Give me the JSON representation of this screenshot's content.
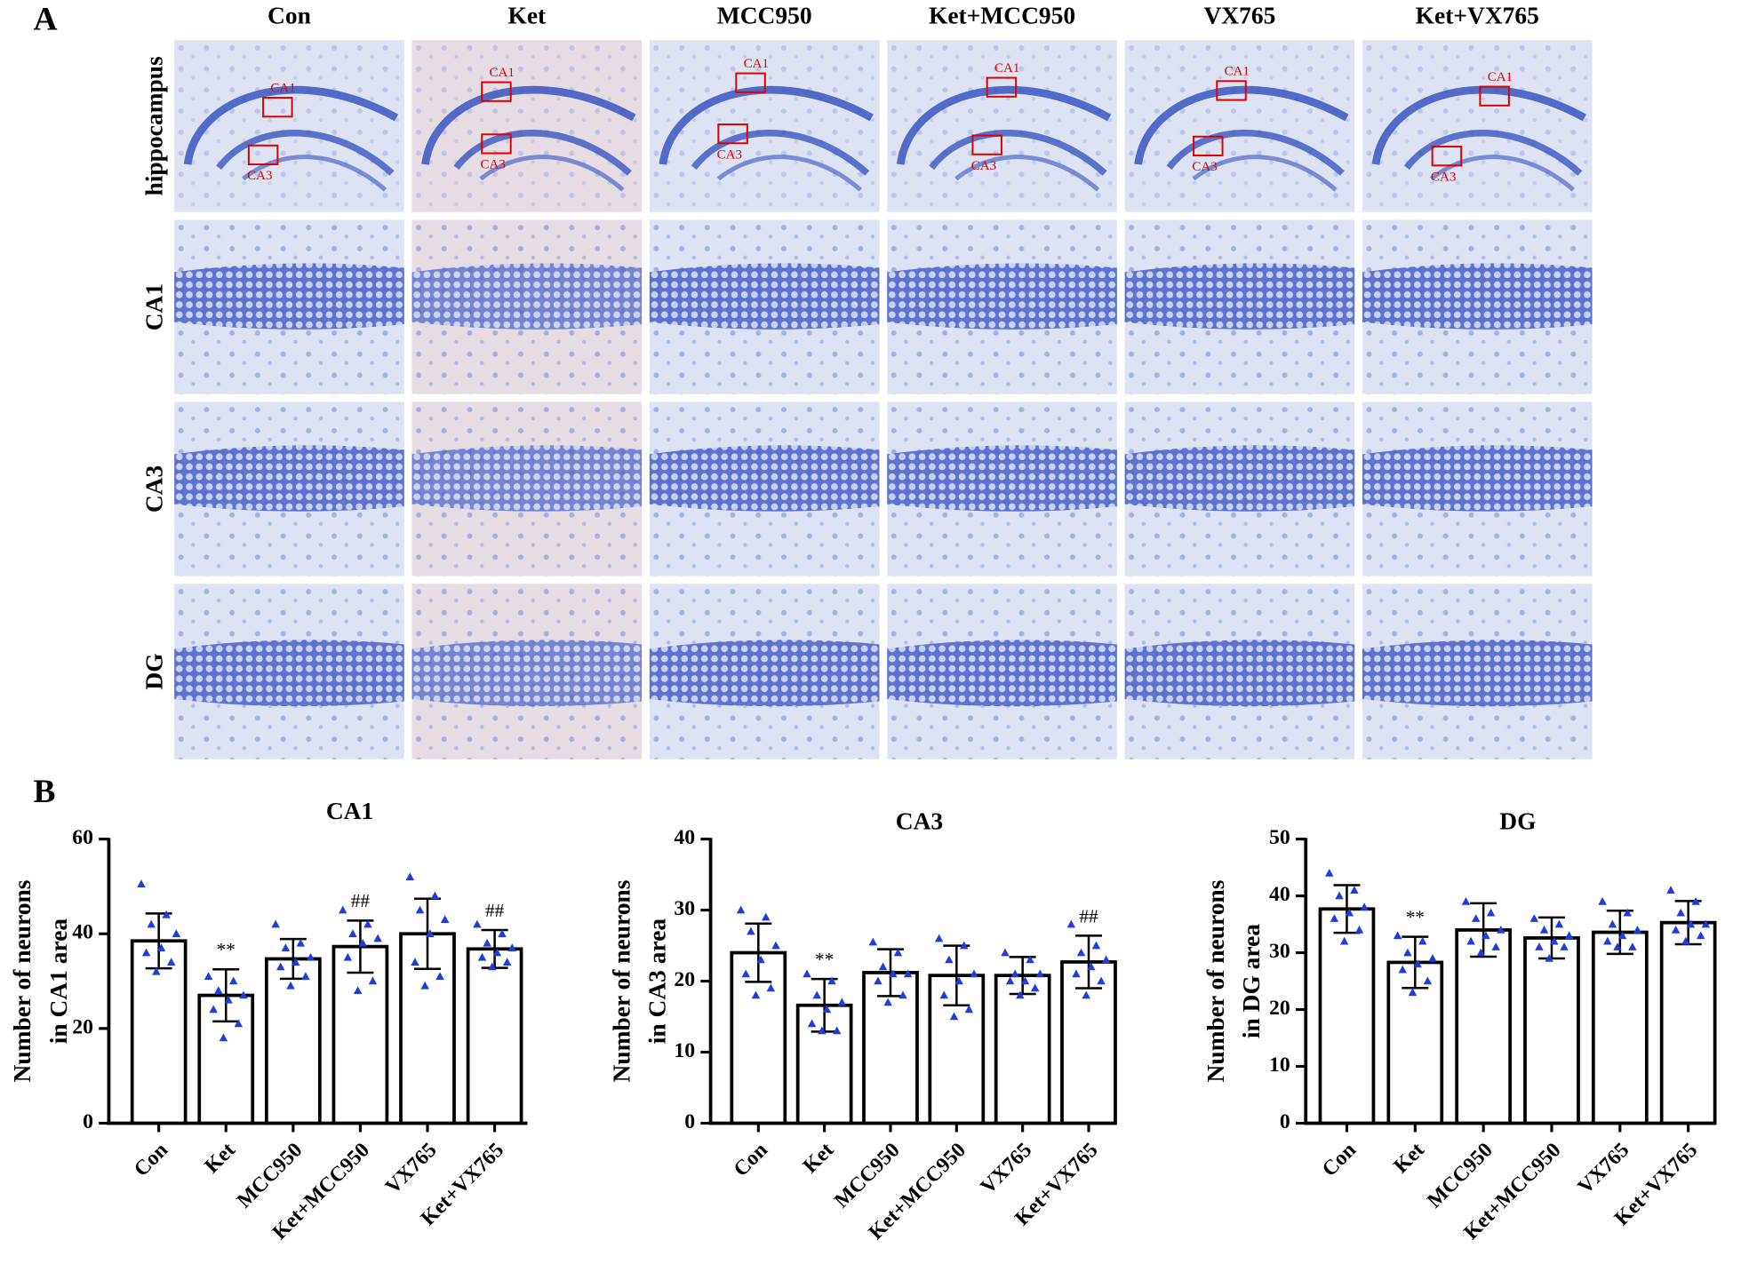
{
  "panel_labels": [
    "A",
    "B"
  ],
  "micrographs": {
    "columns": [
      "Con",
      "Ket",
      "MCC950",
      "Ket+MCC950",
      "VX765",
      "Ket+VX765"
    ],
    "rows": [
      "hippocampus",
      "CA1",
      "CA3",
      "DG"
    ],
    "region_labels": [
      "CA1",
      "CA3"
    ]
  },
  "chart_data": [
    {
      "type": "bar",
      "title": "CA1",
      "y_label": [
        "Number of neurons",
        "in CA1 area"
      ],
      "categories": [
        "Con",
        "Ket",
        "MCC950",
        "Ket+MCC950",
        "VX765",
        "Ket+VX765"
      ],
      "values": [
        38.5,
        27,
        34.7,
        37.3,
        40,
        36.8
      ],
      "errors": [
        5.8,
        5.5,
        4.2,
        5.5,
        7.4,
        4
      ],
      "annotations": [
        null,
        "**",
        null,
        "##",
        null,
        "##"
      ],
      "points": [
        [
          50.5,
          44,
          42,
          40,
          37,
          36,
          34,
          32
        ],
        [
          31,
          30,
          28,
          27,
          26,
          24,
          21,
          18
        ],
        [
          42,
          38,
          37,
          35,
          34,
          33,
          31,
          29
        ],
        [
          45,
          42,
          40,
          39,
          38,
          35,
          30,
          28
        ],
        [
          52,
          48,
          45,
          43,
          40,
          34,
          31,
          29
        ],
        [
          42,
          40,
          38,
          37,
          36,
          35,
          34,
          33
        ]
      ],
      "color": "#000000",
      "point_color": "#1d3ed8",
      "ylim": [
        0,
        60
      ],
      "yticks": [
        0,
        20,
        40,
        60
      ]
    },
    {
      "type": "bar",
      "title": "CA3",
      "y_label": [
        "Number of neurons",
        "in CA3 area"
      ],
      "categories": [
        "Con",
        "Ket",
        "MCC950",
        "Ket+MCC950",
        "VX765",
        "Ket+VX765"
      ],
      "values": [
        24,
        16.6,
        21.2,
        20.8,
        20.8,
        22.7
      ],
      "errors": [
        4.1,
        3.7,
        3.3,
        4.2,
        2.6,
        3.7
      ],
      "annotations": [
        null,
        "**",
        null,
        null,
        null,
        "##"
      ],
      "points": [
        [
          30,
          29,
          27,
          25,
          23,
          21,
          19,
          18
        ],
        [
          21,
          20,
          18,
          17,
          16,
          14,
          13,
          13
        ],
        [
          25.5,
          24,
          22,
          21,
          21,
          20,
          18,
          17
        ],
        [
          26,
          25,
          23,
          21,
          20,
          18,
          16,
          15
        ],
        [
          24,
          23,
          21,
          21,
          20,
          20,
          19,
          18
        ],
        [
          28,
          25,
          24,
          23,
          22,
          21,
          20,
          18
        ]
      ],
      "color": "#000000",
      "point_color": "#1d3ed8",
      "ylim": [
        0,
        40
      ],
      "yticks": [
        0,
        10,
        20,
        30,
        40
      ]
    },
    {
      "type": "bar",
      "title": "DG",
      "y_label": [
        "Number of neurons",
        "in DG area"
      ],
      "categories": [
        "Con",
        "Ket",
        "MCC950",
        "Ket+MCC950",
        "VX765",
        "Ket+VX765"
      ],
      "values": [
        37.7,
        28.3,
        34,
        32.6,
        33.6,
        35.3
      ],
      "errors": [
        4.2,
        4.5,
        4.7,
        3.6,
        3.8,
        3.8
      ],
      "annotations": [
        null,
        "**",
        null,
        null,
        null,
        null
      ],
      "points": [
        [
          44,
          41,
          40,
          38,
          37,
          36,
          34,
          32
        ],
        [
          33,
          32,
          30,
          29,
          28,
          27,
          25,
          23
        ],
        [
          39,
          37,
          36,
          34,
          33,
          32,
          31,
          30
        ],
        [
          36,
          35,
          34,
          33,
          32,
          31,
          31,
          29
        ],
        [
          39,
          37,
          35,
          34,
          33,
          32,
          31,
          31
        ],
        [
          41,
          39,
          37,
          35,
          35,
          34,
          33,
          32
        ]
      ],
      "color": "#000000",
      "point_color": "#1d3ed8",
      "ylim": [
        0,
        50
      ],
      "yticks": [
        0,
        10,
        20,
        30,
        40,
        50
      ]
    }
  ]
}
